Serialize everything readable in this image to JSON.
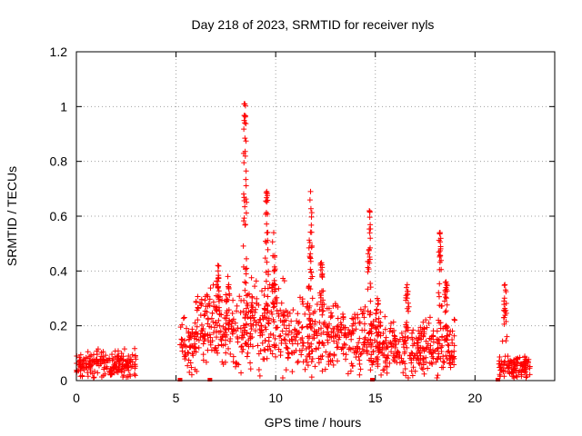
{
  "chart_data": {
    "type": "scatter",
    "title": "Day 218 of 2023, SRMTID for receiver nyls",
    "xlabel": "GPS time / hours",
    "ylabel": "SRMTID / TECUs",
    "xlim": [
      0,
      24
    ],
    "ylim": [
      0,
      1.2
    ],
    "xticks": [
      0,
      5,
      10,
      15,
      20
    ],
    "xtick_labels": [
      "0",
      "5",
      "10",
      "15",
      "20"
    ],
    "yticks": [
      0,
      0.2,
      0.4,
      0.6,
      0.8,
      1.0,
      1.2
    ],
    "ytick_labels": [
      "0",
      "0.2",
      "0.4",
      "0.6",
      "0.8",
      "1",
      "1.2"
    ],
    "grid": true,
    "marker": "plus",
    "series_color": "#ff0000",
    "zero_markers": [
      5.2,
      6.7,
      14.85,
      21.15
    ],
    "baseline_segments": [
      {
        "x_from": 0.0,
        "x_to": 3.0,
        "level": 0.06
      },
      {
        "x_from": 5.2,
        "x_to": 6.0,
        "level": 0.12
      },
      {
        "x_from": 6.0,
        "x_to": 8.0,
        "level": 0.2
      },
      {
        "x_from": 8.0,
        "x_to": 10.5,
        "level": 0.2
      },
      {
        "x_from": 10.5,
        "x_to": 13.0,
        "level": 0.17
      },
      {
        "x_from": 13.0,
        "x_to": 15.5,
        "level": 0.15
      },
      {
        "x_from": 15.5,
        "x_to": 19.0,
        "level": 0.12
      },
      {
        "x_from": 21.2,
        "x_to": 22.8,
        "level": 0.05
      }
    ],
    "peaks": [
      {
        "x": 7.1,
        "y": 0.42
      },
      {
        "x": 7.6,
        "y": 0.38
      },
      {
        "x": 8.45,
        "y": 1.01
      },
      {
        "x": 9.55,
        "y": 0.69
      },
      {
        "x": 9.9,
        "y": 0.54
      },
      {
        "x": 11.75,
        "y": 0.69
      },
      {
        "x": 12.3,
        "y": 0.43
      },
      {
        "x": 14.7,
        "y": 0.62
      },
      {
        "x": 15.1,
        "y": 0.3
      },
      {
        "x": 16.6,
        "y": 0.35
      },
      {
        "x": 18.25,
        "y": 0.54
      },
      {
        "x": 18.55,
        "y": 0.36
      },
      {
        "x": 21.5,
        "y": 0.35
      }
    ]
  }
}
